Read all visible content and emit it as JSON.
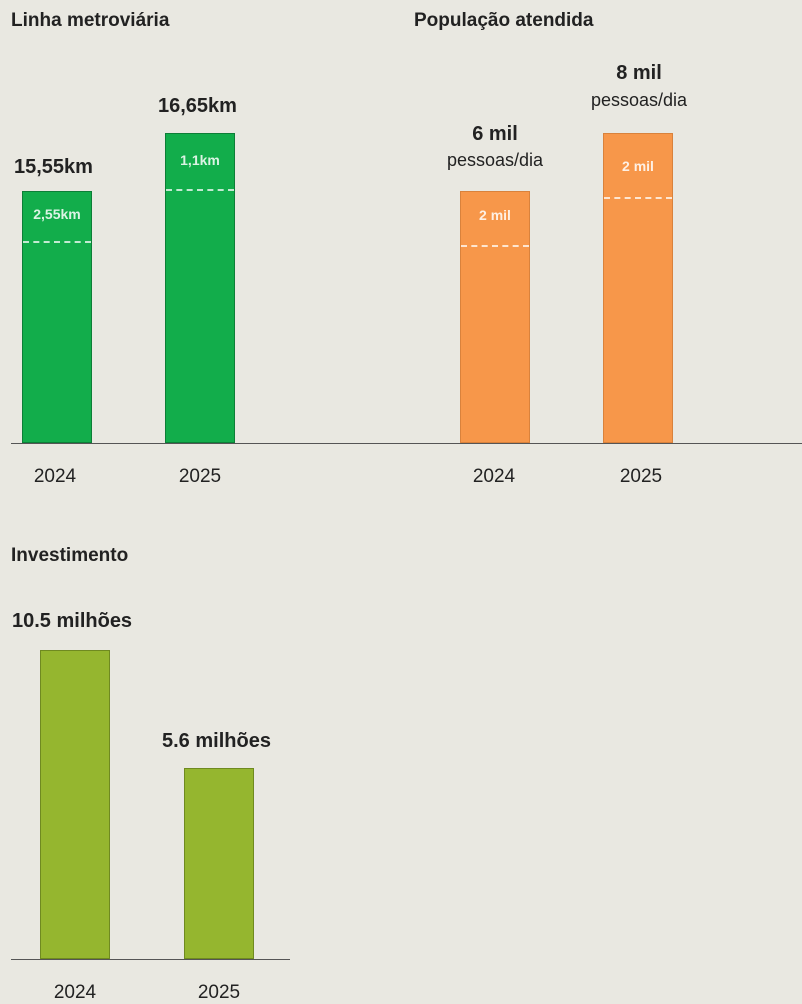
{
  "chart_data": [
    {
      "type": "bar",
      "title": "Linha metroviária",
      "categories": [
        "2024",
        "2025"
      ],
      "values": [
        15.55,
        16.65
      ],
      "value_labels": [
        "15,55km",
        "16,65km"
      ],
      "increments": [
        "2,55km",
        "1,1km"
      ],
      "color": "#12ad4b"
    },
    {
      "type": "bar",
      "title": "População atendida",
      "categories": [
        "2024",
        "2025"
      ],
      "values": [
        6000,
        8000
      ],
      "value_labels": [
        "6 mil",
        "8 mil"
      ],
      "value_sublabels": [
        "pessoas/dia",
        "pessoas/dia"
      ],
      "increments": [
        "2 mil",
        "2 mil"
      ],
      "color": "#f7974a"
    },
    {
      "type": "bar",
      "title": "Investimento",
      "categories": [
        "2024",
        "2025"
      ],
      "values": [
        10.5,
        5.6
      ],
      "value_labels": [
        "10.5 milhões",
        "5.6 milhões"
      ],
      "color": "#95b62f"
    }
  ]
}
